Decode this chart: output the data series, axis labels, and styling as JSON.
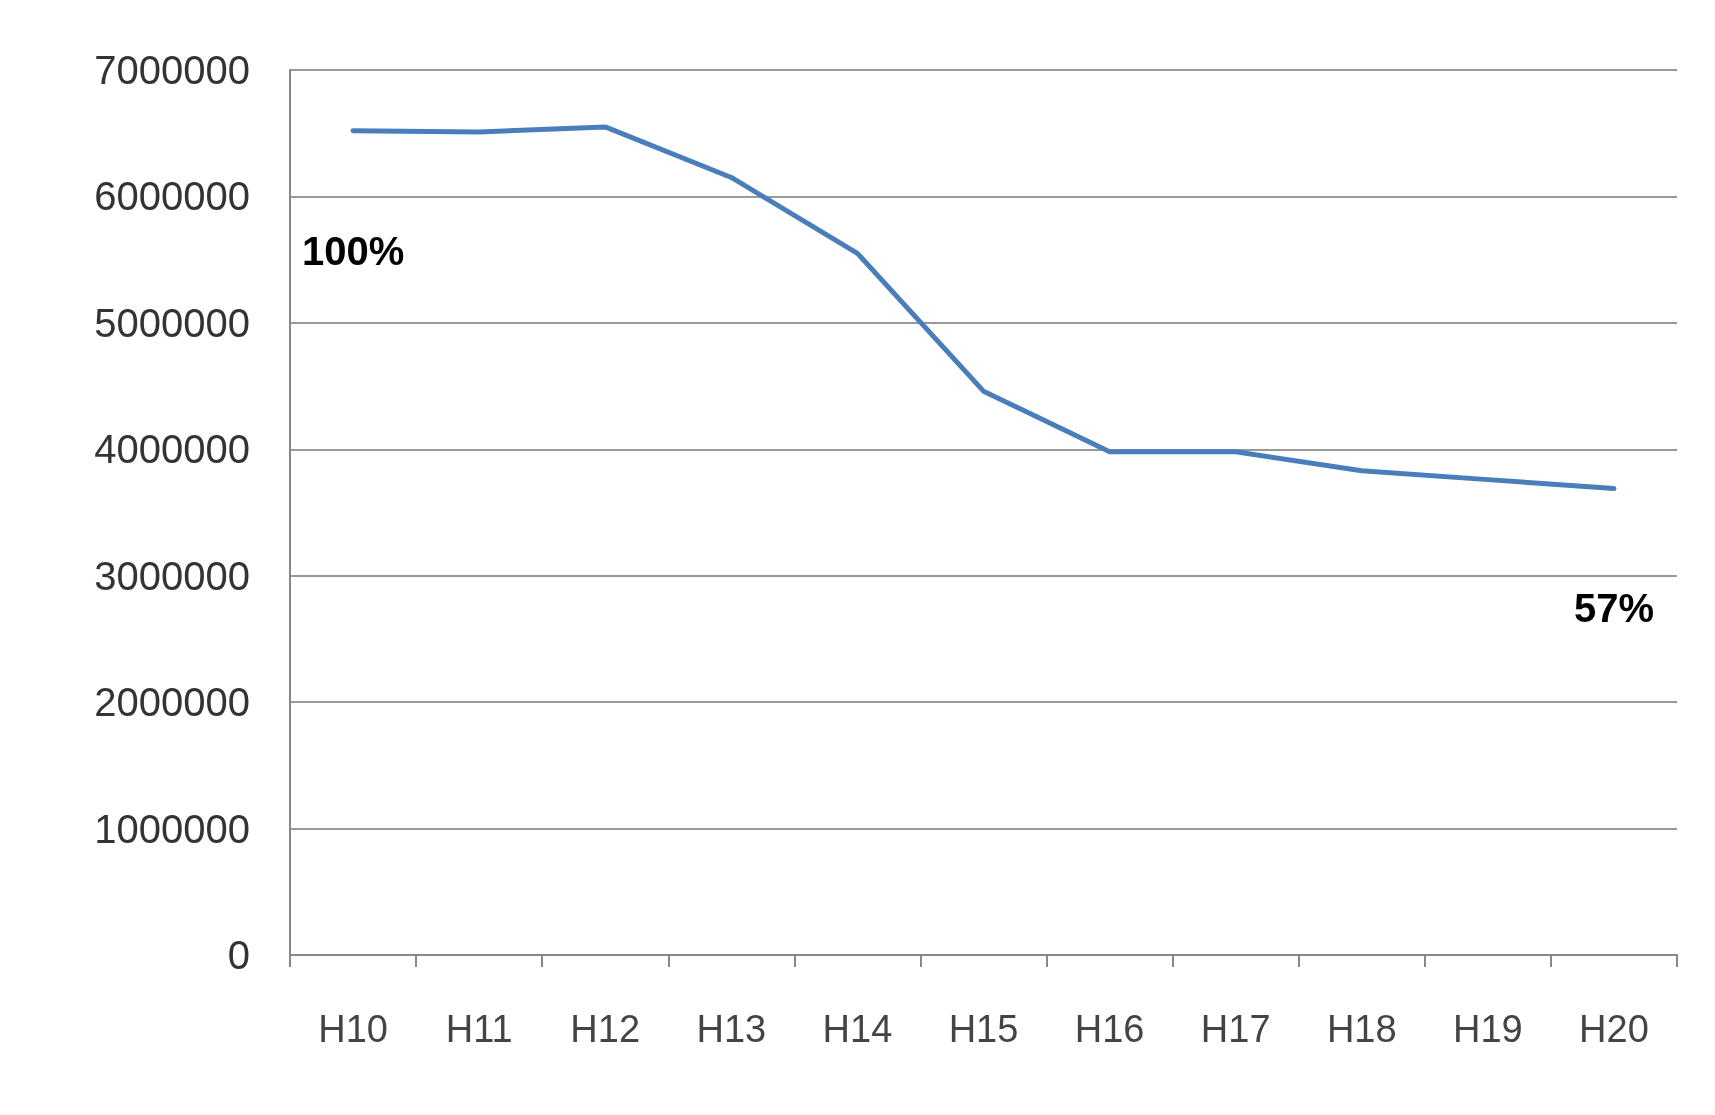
{
  "chart_data": {
    "type": "line",
    "categories": [
      "H10",
      "H11",
      "H12",
      "H13",
      "H14",
      "H15",
      "H16",
      "H17",
      "H18",
      "H19",
      "H20"
    ],
    "series": [
      {
        "color": "#4a7ebb",
        "values": [
          6520000,
          6510000,
          6550000,
          6150000,
          5550000,
          4460000,
          3980000,
          3980000,
          3830000,
          3760000,
          3690000
        ]
      }
    ],
    "ylim": [
      0,
      7000000
    ],
    "yticks": [
      0,
      1000000,
      2000000,
      3000000,
      4000000,
      5000000,
      6000000,
      7000000
    ],
    "grid": "y",
    "marker": "none",
    "line_style": "solid",
    "annotations": [
      {
        "text": "100%",
        "x": "H10",
        "y": 6520000
      },
      {
        "text": "57%",
        "x": "H20",
        "y": 3690000
      }
    ]
  }
}
